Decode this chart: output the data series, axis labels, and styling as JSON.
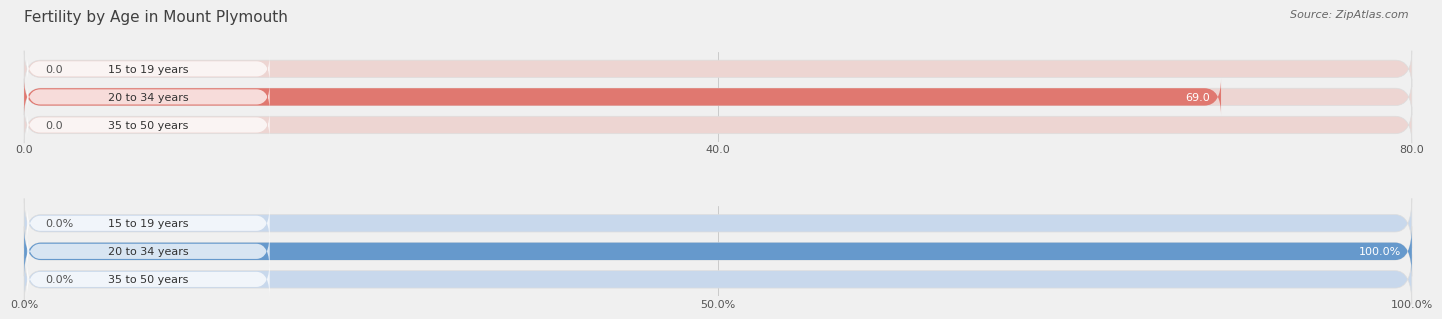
{
  "title": "Fertility by Age in Mount Plymouth",
  "source": "Source: ZipAtlas.com",
  "top_chart": {
    "categories": [
      "15 to 19 years",
      "20 to 34 years",
      "35 to 50 years"
    ],
    "values": [
      0.0,
      69.0,
      0.0
    ],
    "xlim": [
      0,
      80.0
    ],
    "xticks": [
      0.0,
      40.0,
      80.0
    ],
    "xtick_labels": [
      "0.0",
      "40.0",
      "80.0"
    ],
    "bar_color": "#E07870",
    "bar_bg_color": "#EDD5D2",
    "label_bg_color": "#EDD5D2",
    "value_labels": [
      "0.0",
      "69.0",
      "0.0"
    ]
  },
  "bottom_chart": {
    "categories": [
      "15 to 19 years",
      "20 to 34 years",
      "35 to 50 years"
    ],
    "values": [
      0.0,
      100.0,
      0.0
    ],
    "xlim": [
      0,
      100.0
    ],
    "xticks": [
      0.0,
      50.0,
      100.0
    ],
    "xtick_labels": [
      "0.0%",
      "50.0%",
      "100.0%"
    ],
    "bar_color": "#6699CC",
    "bar_bg_color": "#C8D8EC",
    "label_bg_color": "#C8D8EC",
    "value_labels": [
      "0.0%",
      "100.0%",
      "0.0%"
    ]
  },
  "bg_color": "#f0f0f0",
  "title_fontsize": 11,
  "source_fontsize": 8,
  "label_fontsize": 8,
  "tick_fontsize": 8,
  "bar_height": 0.62
}
